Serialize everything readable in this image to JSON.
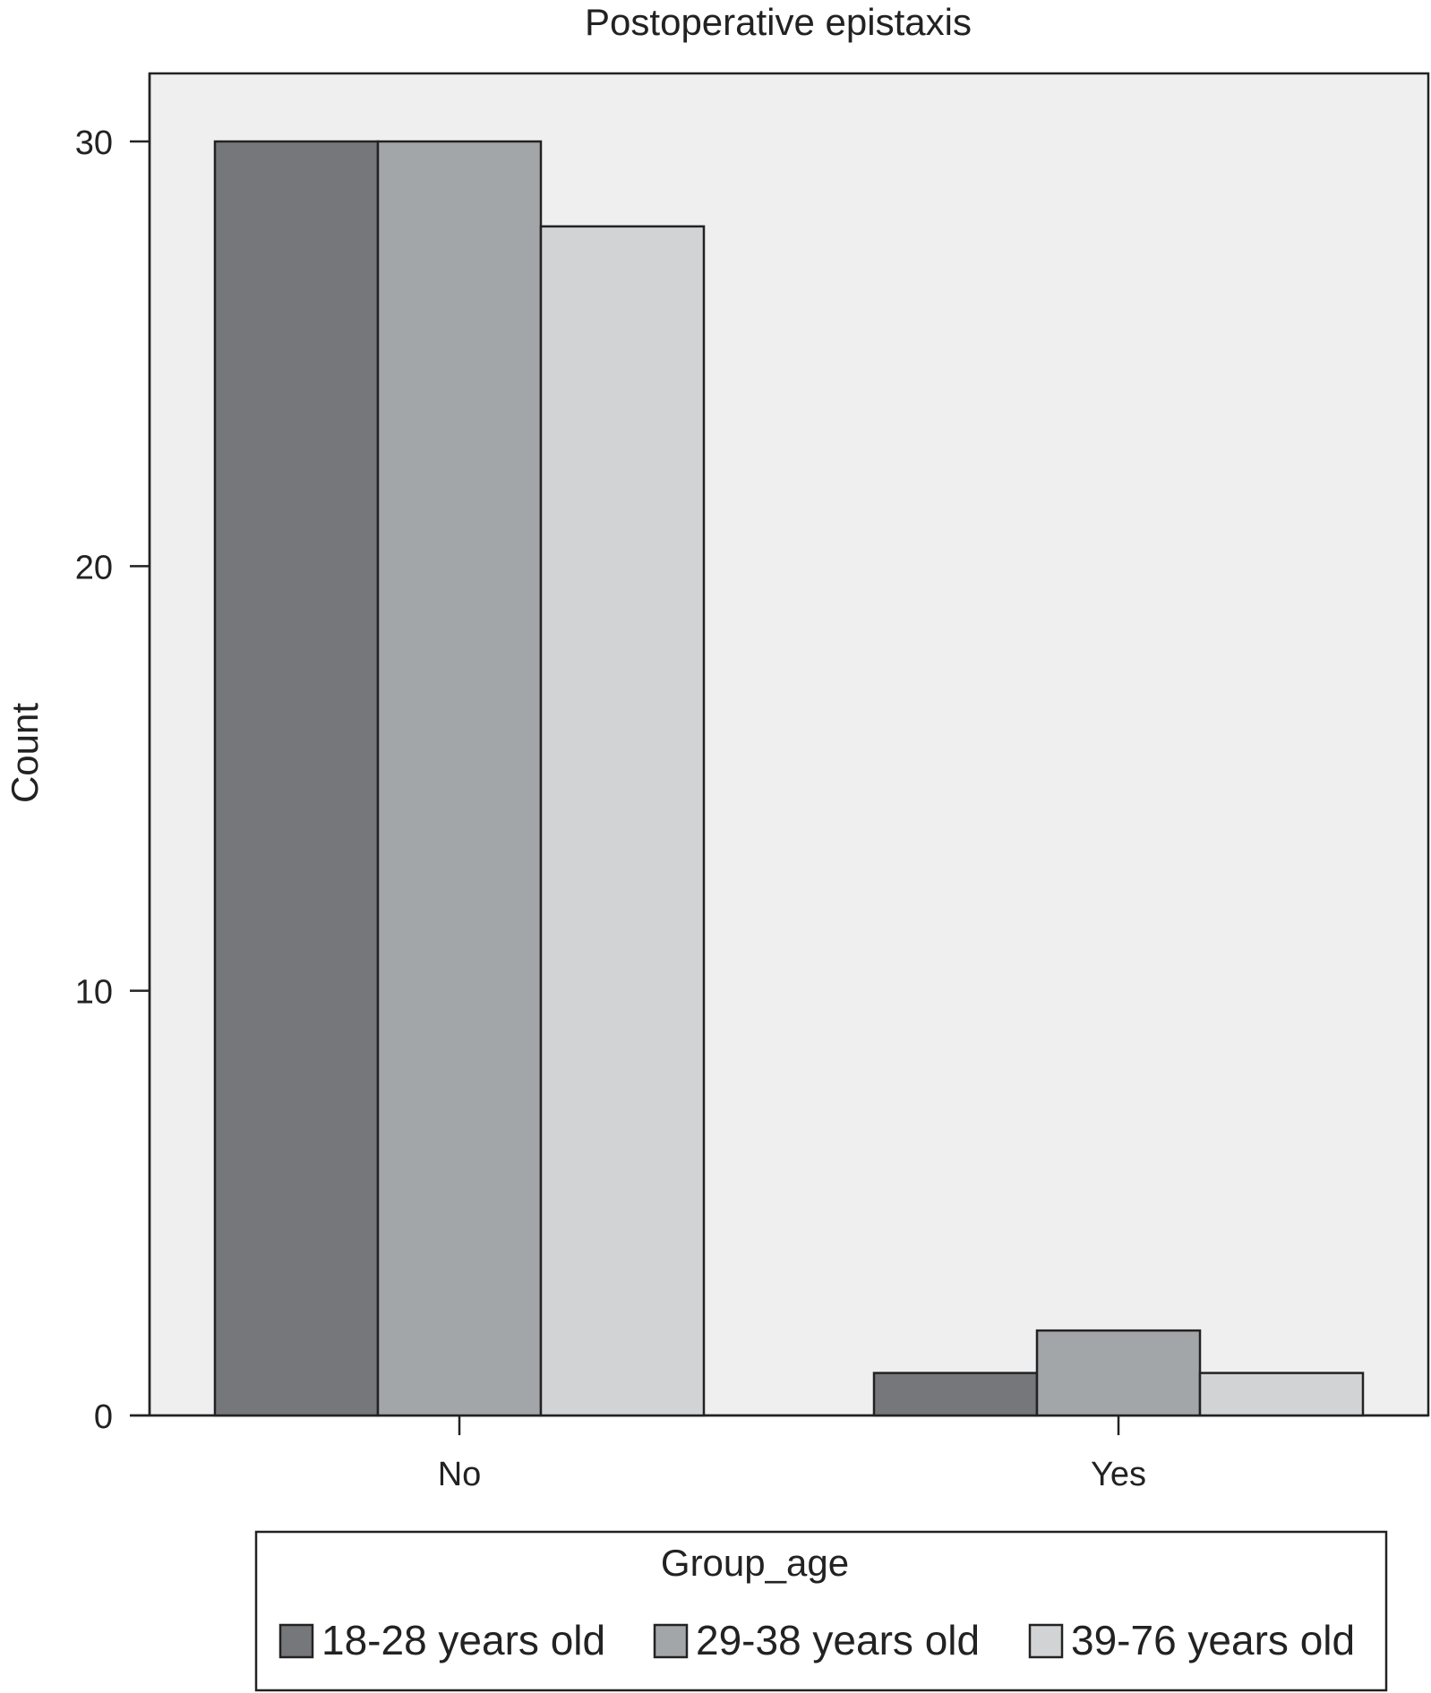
{
  "chart_data": {
    "type": "bar",
    "title": "Postoperative epistaxis",
    "xlabel": "",
    "ylabel": "Count",
    "categories": [
      "No",
      "Yes"
    ],
    "series": [
      {
        "name": "18-28 years old",
        "values": [
          30,
          1
        ],
        "color": "#76777b"
      },
      {
        "name": "29-38 years old",
        "values": [
          30,
          2
        ],
        "color": "#a3a6a9"
      },
      {
        "name": "39-76 years old",
        "values": [
          28,
          1
        ],
        "color": "#d2d3d5"
      }
    ],
    "ylim": [
      0,
      31.6
    ],
    "yticks": [
      0,
      10,
      20,
      30
    ],
    "grid": false,
    "legend": {
      "title": "Group_age",
      "position": "bottom"
    },
    "colors": {
      "plot_background": "#efefef",
      "axis": "#222222"
    }
  }
}
